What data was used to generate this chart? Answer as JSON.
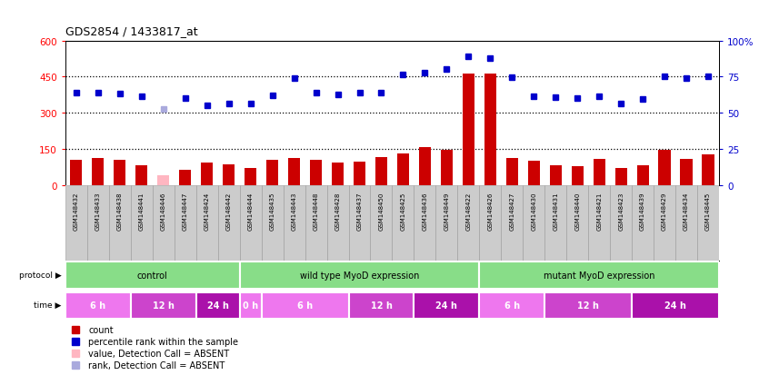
{
  "title": "GDS2854 / 1433817_at",
  "samples": [
    "GSM148432",
    "GSM148433",
    "GSM148438",
    "GSM148441",
    "GSM148446",
    "GSM148447",
    "GSM148424",
    "GSM148442",
    "GSM148444",
    "GSM148435",
    "GSM148443",
    "GSM148448",
    "GSM148428",
    "GSM148437",
    "GSM148450",
    "GSM148425",
    "GSM148436",
    "GSM148449",
    "GSM148422",
    "GSM148426",
    "GSM148427",
    "GSM148430",
    "GSM148431",
    "GSM148440",
    "GSM148421",
    "GSM148423",
    "GSM148439",
    "GSM148429",
    "GSM148434",
    "GSM148445"
  ],
  "counts": [
    105,
    112,
    104,
    82,
    40,
    62,
    95,
    85,
    72,
    104,
    112,
    104,
    92,
    98,
    118,
    132,
    158,
    148,
    462,
    462,
    112,
    100,
    82,
    78,
    108,
    72,
    82,
    148,
    108,
    128
  ],
  "absent_count": [
    false,
    false,
    false,
    false,
    true,
    false,
    false,
    false,
    false,
    false,
    false,
    false,
    false,
    false,
    false,
    false,
    false,
    false,
    false,
    false,
    false,
    false,
    false,
    false,
    false,
    false,
    false,
    false,
    false,
    false
  ],
  "ranks": [
    385,
    385,
    380,
    368,
    315,
    360,
    332,
    340,
    338,
    372,
    445,
    382,
    375,
    382,
    383,
    460,
    465,
    483,
    533,
    527,
    448,
    370,
    365,
    360,
    367,
    340,
    358,
    452,
    445,
    452
  ],
  "absent_rank": [
    false,
    false,
    false,
    false,
    true,
    false,
    false,
    false,
    false,
    false,
    false,
    false,
    false,
    false,
    false,
    false,
    false,
    false,
    false,
    false,
    false,
    false,
    false,
    false,
    false,
    false,
    false,
    false,
    false,
    false
  ],
  "ylim_left": [
    0,
    600
  ],
  "ylim_right": [
    0,
    100
  ],
  "yticks_left": [
    0,
    150,
    300,
    450,
    600
  ],
  "yticks_right": [
    0,
    25,
    50,
    75,
    100
  ],
  "bar_color": "#CC0000",
  "absent_bar_color": "#FFB6C1",
  "rank_color": "#0000CC",
  "absent_rank_color": "#AAAADD",
  "protocol_groups": [
    {
      "label": "control",
      "start": 0,
      "end": 8
    },
    {
      "label": "wild type MyoD expression",
      "start": 8,
      "end": 19
    },
    {
      "label": "mutant MyoD expression",
      "start": 19,
      "end": 30
    }
  ],
  "protocol_color": "#88DD88",
  "time_groups": [
    {
      "label": "6 h",
      "start": 0,
      "end": 3,
      "color": "#EE77EE"
    },
    {
      "label": "12 h",
      "start": 3,
      "end": 6,
      "color": "#CC44CC"
    },
    {
      "label": "24 h",
      "start": 6,
      "end": 8,
      "color": "#AA11AA"
    },
    {
      "label": "0 h",
      "start": 8,
      "end": 9,
      "color": "#EE77EE"
    },
    {
      "label": "6 h",
      "start": 9,
      "end": 13,
      "color": "#EE77EE"
    },
    {
      "label": "12 h",
      "start": 13,
      "end": 16,
      "color": "#CC44CC"
    },
    {
      "label": "24 h",
      "start": 16,
      "end": 19,
      "color": "#AA11AA"
    },
    {
      "label": "6 h",
      "start": 19,
      "end": 22,
      "color": "#EE77EE"
    },
    {
      "label": "12 h",
      "start": 22,
      "end": 26,
      "color": "#CC44CC"
    },
    {
      "label": "24 h",
      "start": 26,
      "end": 30,
      "color": "#AA11AA"
    }
  ],
  "col_bg_even": "#CCCCCC",
  "col_bg_odd": "#BBBBBB",
  "label_area_bg": "#CCCCCC"
}
